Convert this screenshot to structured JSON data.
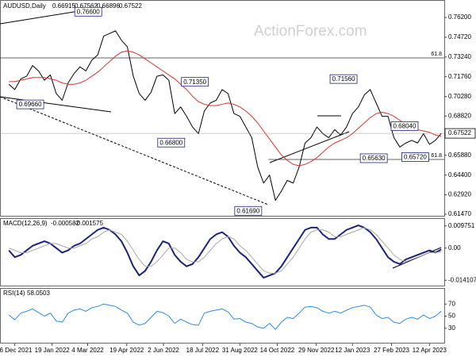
{
  "chart_data": [
    {
      "type": "line",
      "title": "AUDUSD,Daily",
      "ohlc": [
        0.66915,
        0.67562,
        0.66896,
        0.67522
      ],
      "watermark": "ActionForex.com",
      "xlim": [
        -1.5,
        73.5
      ],
      "ylim": [
        0.6135,
        0.7739
      ],
      "yticks": [
        {
          "value": 0.762,
          "label": "0.76200"
        },
        {
          "value": 0.7472,
          "label": "0.74720"
        },
        {
          "value": 0.7324,
          "label": "0.73240"
        },
        {
          "value": 0.7176,
          "label": "0.71760"
        },
        {
          "value": 0.7028,
          "label": "0.70280"
        },
        {
          "value": 0.6882,
          "label": "0.68820"
        },
        {
          "value": 0.6588,
          "label": "0.65880"
        },
        {
          "value": 0.644,
          "label": "0.64400"
        },
        {
          "value": 0.6292,
          "label": "0.62920"
        },
        {
          "value": 0.6147,
          "label": "0.61470"
        }
      ],
      "series": [
        {
          "color": "#000000",
          "width": 1,
          "values": [
            0.712,
            0.708,
            0.716,
            0.718,
            0.726,
            0.722,
            0.715,
            0.719,
            0.705,
            0.7,
            0.713,
            0.72,
            0.725,
            0.722,
            0.73,
            0.734,
            0.748,
            0.75,
            0.752,
            0.745,
            0.74,
            0.718,
            0.705,
            0.7,
            0.706,
            0.718,
            0.719,
            0.715,
            0.69,
            0.695,
            0.688,
            0.68,
            0.675,
            0.692,
            0.698,
            0.7,
            0.708,
            0.705,
            0.69,
            0.688,
            0.68,
            0.672,
            0.65,
            0.638,
            0.644,
            0.625,
            0.632,
            0.64,
            0.638,
            0.65,
            0.668,
            0.672,
            0.68,
            0.675,
            0.672,
            0.678,
            0.674,
            0.68,
            0.69,
            0.695,
            0.704,
            0.708,
            0.698,
            0.688,
            0.688,
            0.672,
            0.665,
            0.668,
            0.67,
            0.668,
            0.675,
            0.667,
            0.67,
            0.67522
          ]
        },
        {
          "color": "#e03030",
          "width": 1,
          "values": [
            0.714,
            0.714,
            0.715,
            0.716,
            0.717,
            0.717,
            0.717,
            0.716,
            0.715,
            0.713,
            0.712,
            0.712,
            0.713,
            0.715,
            0.718,
            0.721,
            0.725,
            0.729,
            0.733,
            0.736,
            0.737,
            0.736,
            0.734,
            0.731,
            0.728,
            0.725,
            0.722,
            0.719,
            0.716,
            0.712,
            0.708,
            0.703,
            0.699,
            0.697,
            0.696,
            0.696,
            0.697,
            0.698,
            0.697,
            0.695,
            0.692,
            0.688,
            0.683,
            0.677,
            0.671,
            0.665,
            0.659,
            0.655,
            0.652,
            0.651,
            0.652,
            0.654,
            0.657,
            0.661,
            0.665,
            0.668,
            0.67,
            0.672,
            0.675,
            0.679,
            0.683,
            0.687,
            0.69,
            0.691,
            0.69,
            0.688,
            0.685,
            0.682,
            0.68,
            0.678,
            0.677,
            0.676,
            0.674,
            0.673
          ]
        }
      ],
      "annotations": [
        {
          "x": 13.4,
          "value": 0.766,
          "label": "0.76600"
        },
        {
          "x": 3.6,
          "value": 0.6966,
          "label": "0.69660"
        },
        {
          "x": 31.4,
          "value": 0.7135,
          "label": "0.71350"
        },
        {
          "x": 27.4,
          "value": 0.668,
          "label": "0.66800"
        },
        {
          "x": 40.4,
          "value": 0.6169,
          "label": "0.61690"
        },
        {
          "x": 56.5,
          "value": 0.7156,
          "label": "0.71560"
        },
        {
          "x": 66.8,
          "value": 0.6804,
          "label": "0.68040"
        },
        {
          "x": 61.6,
          "value": 0.6563,
          "label": "0.65630"
        },
        {
          "x": 68.6,
          "value": 0.6572,
          "label": "0.65720"
        }
      ],
      "levels": [
        {
          "label": "61.8",
          "value": 0.7317,
          "from": -1.5
        },
        {
          "label": "61.8",
          "value": 0.6557,
          "from": 43.8
        }
      ]
    },
    {
      "type": "line",
      "title": "MACD(12,26,9)",
      "xlim": [
        -1.5,
        73.5
      ],
      "ylim": [
        -0.01646,
        0.01244
      ],
      "yticks": [
        0.009751,
        {
          "value": 0,
          "label": "0.00"
        },
        -0.014107
      ],
      "series": [
        {
          "color": "#1a237e",
          "width": 2,
          "values": [
            -0.001,
            -0.004,
            -0.003,
            -0.001,
            0.001,
            0.002,
            0.003,
            0.002,
            0.0,
            -0.002,
            -0.001,
            0.001,
            0.002,
            0.004,
            0.006,
            0.008,
            0.009,
            0.008,
            0.006,
            0.003,
            -0.002,
            -0.008,
            -0.012,
            -0.01,
            -0.006,
            -0.001,
            0.003,
            0.002,
            -0.003,
            -0.006,
            -0.008,
            -0.007,
            -0.004,
            0.0,
            0.004,
            0.006,
            0.007,
            0.005,
            0.001,
            -0.002,
            -0.004,
            -0.007,
            -0.01,
            -0.013,
            -0.012,
            -0.011,
            -0.008,
            -0.004,
            0.0,
            0.004,
            0.008,
            0.009,
            0.009,
            0.006,
            0.004,
            0.004,
            0.006,
            0.008,
            0.009,
            0.01,
            0.009,
            0.007,
            0.004,
            0.0,
            -0.004,
            -0.006,
            -0.007,
            -0.005,
            -0.004,
            -0.003,
            -0.002,
            -0.001,
            -0.002,
            -0.000582
          ]
        },
        {
          "color": "#a8a8a8",
          "width": 1,
          "values": [
            0.0,
            -0.001,
            -0.002,
            -0.002,
            -0.001,
            0.0,
            0.001,
            0.002,
            0.002,
            0.001,
            0.0,
            0.0,
            0.001,
            0.002,
            0.004,
            0.005,
            0.007,
            0.008,
            0.007,
            0.006,
            0.003,
            -0.001,
            -0.005,
            -0.008,
            -0.008,
            -0.006,
            -0.003,
            0.0,
            0.0,
            -0.002,
            -0.005,
            -0.006,
            -0.006,
            -0.004,
            -0.001,
            0.002,
            0.004,
            0.005,
            0.004,
            0.001,
            -0.001,
            -0.004,
            -0.007,
            -0.01,
            -0.011,
            -0.011,
            -0.01,
            -0.007,
            -0.004,
            0.0,
            0.004,
            0.007,
            0.008,
            0.008,
            0.007,
            0.005,
            0.005,
            0.006,
            0.007,
            0.008,
            0.009,
            0.008,
            0.006,
            0.003,
            0.0,
            -0.003,
            -0.005,
            -0.006,
            -0.005,
            -0.004,
            -0.003,
            -0.002,
            -0.002,
            -0.001575
          ]
        }
      ]
    },
    {
      "type": "line",
      "title": "RSI(14)",
      "xlim": [
        -1.5,
        73.5
      ],
      "ylim": [
        6,
        94
      ],
      "yticks": [
        70,
        50,
        30
      ],
      "xticks": [
        {
          "value": 1,
          "label": "6 Dec 2021"
        },
        {
          "value": 7.3,
          "label": "19 Jan 2022"
        },
        {
          "value": 13.3,
          "label": "4 Mar 2022"
        },
        {
          "value": 19.9,
          "label": "19 Apr 2022"
        },
        {
          "value": 26.1,
          "label": "2 Jun 2022"
        },
        {
          "value": 32.7,
          "label": "18 Jul 2022"
        },
        {
          "value": 39,
          "label": "31 Aug 2022"
        },
        {
          "value": 45.3,
          "label": "14 Oct 2022"
        },
        {
          "value": 51.9,
          "label": "29 Nov 2022"
        },
        {
          "value": 58,
          "label": "12 Jan 2023"
        },
        {
          "value": 64.6,
          "label": "27 Feb 2023"
        },
        {
          "value": 71,
          "label": "12 Apr 2023"
        }
      ],
      "series": [
        {
          "color": "#2a8cf0",
          "width": 1,
          "values": [
            52,
            44,
            55,
            58,
            62,
            56,
            50,
            55,
            42,
            40,
            55,
            60,
            62,
            58,
            64,
            66,
            70,
            68,
            66,
            60,
            55,
            40,
            35,
            38,
            48,
            58,
            56,
            50,
            38,
            45,
            40,
            36,
            35,
            55,
            58,
            60,
            62,
            57,
            45,
            46,
            40,
            38,
            32,
            30,
            38,
            28,
            40,
            48,
            46,
            55,
            65,
            66,
            64,
            58,
            55,
            58,
            55,
            60,
            64,
            66,
            68,
            65,
            52,
            46,
            48,
            40,
            38,
            45,
            48,
            45,
            52,
            46,
            50,
            58.0503
          ]
        }
      ]
    }
  ]
}
